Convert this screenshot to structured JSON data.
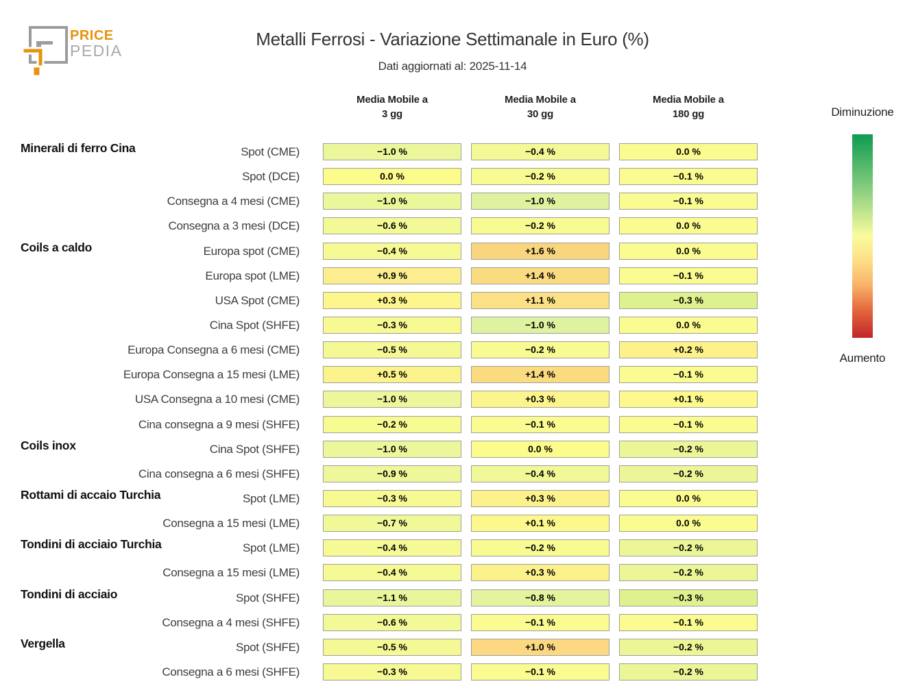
{
  "logo": {
    "price": "PRICE",
    "pedia": "PEDIA",
    "orange": "#e8920d",
    "gray": "#9c9c9c"
  },
  "chart_data": {
    "type": "heatmap",
    "title": "Metalli Ferrosi - Variazione Settimanale in Euro (%)",
    "subtitle": "Dati aggiornati al: 2025-11-14",
    "unit": "%",
    "columns": [
      "Media Mobile a 3 gg",
      "Media Mobile a 30 gg",
      "Media Mobile a 180 gg"
    ],
    "columns_display": [
      {
        "line1": "Media Mobile a",
        "line2": "3 gg"
      },
      {
        "line1": "Media Mobile a",
        "line2": "30 gg"
      },
      {
        "line1": "Media Mobile a",
        "line2": "180 gg"
      }
    ],
    "legend": {
      "top_label": "Diminuzione",
      "bottom_label": "Aumento",
      "color_decrease": "#0d9b51",
      "color_neutral": "#fafb9e",
      "color_increase": "#c22629"
    },
    "rows": [
      {
        "group": "Minerali di ferro Cina",
        "label": "Spot (CME)",
        "values": [
          -1.0,
          -0.4,
          0.0
        ],
        "texts": [
          "−1.0 %",
          "−0.4 %",
          "0.0 %"
        ],
        "colors": [
          "#ecf79b",
          "#f4f995",
          "#fbfc8f"
        ]
      },
      {
        "group": "",
        "label": "Spot (DCE)",
        "values": [
          0.0,
          -0.2,
          -0.1
        ],
        "texts": [
          "0.0 %",
          "−0.2 %",
          "−0.1 %"
        ],
        "colors": [
          "#fcfc8d",
          "#f8fa92",
          "#fafb90"
        ]
      },
      {
        "group": "",
        "label": "Consegna a 4 mesi (CME)",
        "values": [
          -1.0,
          -1.0,
          -0.1
        ],
        "texts": [
          "−1.0 %",
          "−1.0 %",
          "−0.1 %"
        ],
        "colors": [
          "#ecf79b",
          "#def2a0",
          "#fafb90"
        ]
      },
      {
        "group": "",
        "label": "Consegna a 3 mesi (DCE)",
        "values": [
          -0.6,
          -0.2,
          0.0
        ],
        "texts": [
          "−0.6 %",
          "−0.2 %",
          "0.0 %"
        ],
        "colors": [
          "#f3f996",
          "#f8fa92",
          "#fbfc8f"
        ]
      },
      {
        "group": "Coils a caldo",
        "label": "Europa spot (CME)",
        "values": [
          -0.4,
          1.6,
          0.0
        ],
        "texts": [
          "−0.4 %",
          "+1.6 %",
          "0.0 %"
        ],
        "colors": [
          "#f6fa94",
          "#f9d67d",
          "#fbfc8f"
        ]
      },
      {
        "group": "",
        "label": "Europa spot (LME)",
        "values": [
          0.9,
          1.4,
          -0.1
        ],
        "texts": [
          "+0.9 %",
          "+1.4 %",
          "−0.1 %"
        ],
        "colors": [
          "#fcee8e",
          "#fadb80",
          "#fafb90"
        ]
      },
      {
        "group": "",
        "label": "USA Spot (CME)",
        "values": [
          0.3,
          1.1,
          -0.3
        ],
        "texts": [
          "+0.3 %",
          "+1.1 %",
          "−0.3 %"
        ],
        "colors": [
          "#fdf68c",
          "#fbe085",
          "#def18f"
        ]
      },
      {
        "group": "",
        "label": "Cina Spot (SHFE)",
        "values": [
          -0.3,
          -1.0,
          0.0
        ],
        "texts": [
          "−0.3 %",
          "−1.0 %",
          "0.0 %"
        ],
        "colors": [
          "#f7fa93",
          "#def2a0",
          "#fbfc8f"
        ]
      },
      {
        "group": "",
        "label": "Europa Consegna a 6 mesi (CME)",
        "values": [
          -0.5,
          -0.2,
          0.2
        ],
        "texts": [
          "−0.5 %",
          "−0.2 %",
          "+0.2 %"
        ],
        "colors": [
          "#f5f995",
          "#f8fa92",
          "#fdf18b"
        ]
      },
      {
        "group": "",
        "label": "Europa Consegna a 15 mesi (LME)",
        "values": [
          0.5,
          1.4,
          -0.1
        ],
        "texts": [
          "+0.5 %",
          "+1.4 %",
          "−0.1 %"
        ],
        "colors": [
          "#fdf38c",
          "#fadb80",
          "#fafb90"
        ]
      },
      {
        "group": "",
        "label": "USA Consegna a 10 mesi (CME)",
        "values": [
          -1.0,
          0.3,
          0.1
        ],
        "texts": [
          "−1.0 %",
          "+0.3 %",
          "+0.1 %"
        ],
        "colors": [
          "#ecf79b",
          "#fcf48c",
          "#fdf98c"
        ]
      },
      {
        "group": "",
        "label": "Cina consegna a 9 mesi (SHFE)",
        "values": [
          -0.2,
          -0.1,
          -0.1
        ],
        "texts": [
          "−0.2 %",
          "−0.1 %",
          "−0.1 %"
        ],
        "colors": [
          "#f8fa92",
          "#fafb90",
          "#fafb90"
        ]
      },
      {
        "group": "Coils inox",
        "label": "Cina Spot (SHFE)",
        "values": [
          -1.0,
          0.0,
          -0.2
        ],
        "texts": [
          "−1.0 %",
          "0.0 %",
          "−0.2 %"
        ],
        "colors": [
          "#ecf79b",
          "#fcfc8d",
          "#ecf697"
        ]
      },
      {
        "group": "",
        "label": "Cina consegna a 6 mesi (SHFE)",
        "values": [
          -0.9,
          -0.4,
          -0.2
        ],
        "texts": [
          "−0.9 %",
          "−0.4 %",
          "−0.2 %"
        ],
        "colors": [
          "#eef89a",
          "#f1f897",
          "#ecf697"
        ]
      },
      {
        "group": "Rottami di accaio Turchia",
        "label": "Spot (LME)",
        "values": [
          -0.3,
          0.3,
          0.0
        ],
        "texts": [
          "−0.3 %",
          "+0.3 %",
          "0.0 %"
        ],
        "colors": [
          "#f7fa93",
          "#fcf28c",
          "#fbfc8f"
        ]
      },
      {
        "group": "",
        "label": "Consegna a 15 mesi (LME)",
        "values": [
          -0.7,
          0.1,
          0.0
        ],
        "texts": [
          "−0.7 %",
          "+0.1 %",
          "0.0 %"
        ],
        "colors": [
          "#f1f898",
          "#fdf88c",
          "#fbfc8f"
        ]
      },
      {
        "group": "Tondini di acciaio Turchia",
        "label": "Spot (LME)",
        "values": [
          -0.4,
          -0.2,
          -0.2
        ],
        "texts": [
          "−0.4 %",
          "−0.2 %",
          "−0.2 %"
        ],
        "colors": [
          "#f6fa94",
          "#f8fa92",
          "#ecf697"
        ]
      },
      {
        "group": "",
        "label": "Consegna a 15 mesi (LME)",
        "values": [
          -0.4,
          0.3,
          -0.2
        ],
        "texts": [
          "−0.4 %",
          "+0.3 %",
          "−0.2 %"
        ],
        "colors": [
          "#f6fa94",
          "#fcf28c",
          "#ecf697"
        ]
      },
      {
        "group": "Tondini di acciaio",
        "label": "Spot (SHFE)",
        "values": [
          -1.1,
          -0.8,
          -0.3
        ],
        "texts": [
          "−1.1 %",
          "−0.8 %",
          "−0.3 %"
        ],
        "colors": [
          "#eaf69c",
          "#e4f49e",
          "#def18f"
        ]
      },
      {
        "group": "",
        "label": "Consegna a 4 mesi (SHFE)",
        "values": [
          -0.6,
          -0.1,
          -0.1
        ],
        "texts": [
          "−0.6 %",
          "−0.1 %",
          "−0.1 %"
        ],
        "colors": [
          "#f3f996",
          "#fafb90",
          "#fafb90"
        ]
      },
      {
        "group": "Vergella",
        "label": "Spot (SHFE)",
        "values": [
          -0.5,
          1.0,
          -0.2
        ],
        "texts": [
          "−0.5 %",
          "+1.0 %",
          "−0.2 %"
        ],
        "colors": [
          "#f5f995",
          "#fbd881",
          "#ecf697"
        ]
      },
      {
        "group": "",
        "label": "Consegna a 6 mesi (SHFE)",
        "values": [
          -0.3,
          -0.1,
          -0.2
        ],
        "texts": [
          "−0.3 %",
          "−0.1 %",
          "−0.2 %"
        ],
        "colors": [
          "#f7fa93",
          "#fafb90",
          "#ecf697"
        ]
      }
    ]
  }
}
